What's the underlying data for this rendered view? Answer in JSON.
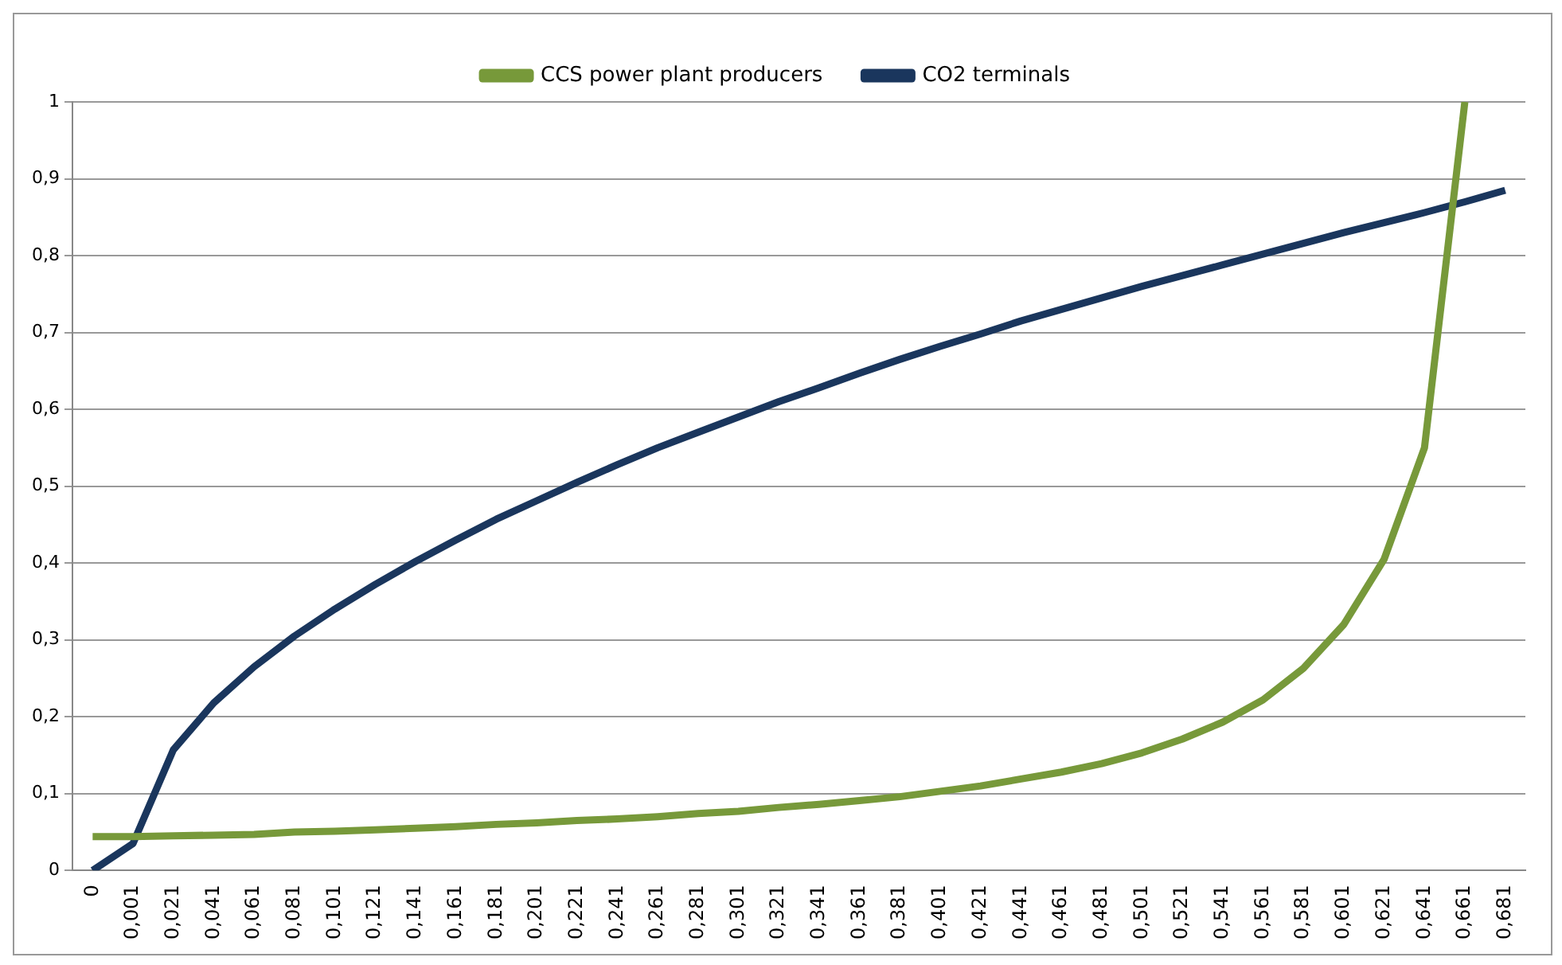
{
  "chart_data": {
    "type": "line",
    "categories": [
      "0",
      "0,001",
      "0,021",
      "0,041",
      "0,061",
      "0,081",
      "0,101",
      "0,121",
      "0,141",
      "0,161",
      "0,181",
      "0,201",
      "0,221",
      "0,241",
      "0,261",
      "0,281",
      "0,301",
      "0,321",
      "0,341",
      "0,361",
      "0,381",
      "0,401",
      "0,421",
      "0,441",
      "0,461",
      "0,481",
      "0,501",
      "0,521",
      "0,541",
      "0,561",
      "0,581",
      "0,601",
      "0,621",
      "0,641",
      "0,661",
      "0,681"
    ],
    "series": [
      {
        "name": "CCS power plant producers",
        "color": "#77993a",
        "values": [
          0.044,
          0.044,
          0.045,
          0.046,
          0.047,
          0.05,
          0.051,
          0.053,
          0.055,
          0.057,
          0.06,
          0.062,
          0.065,
          0.067,
          0.07,
          0.074,
          0.077,
          0.082,
          0.086,
          0.091,
          0.096,
          0.103,
          0.11,
          0.119,
          0.128,
          0.139,
          0.153,
          0.171,
          0.193,
          0.222,
          0.263,
          0.32,
          0.405,
          0.55,
          1,
          null
        ]
      },
      {
        "name": "CO2 terminals",
        "color": "#1a365d",
        "values": [
          0,
          0.035,
          0.157,
          0.218,
          0.265,
          0.305,
          0.34,
          0.372,
          0.402,
          0.43,
          0.457,
          0.481,
          0.505,
          0.528,
          0.55,
          0.57,
          0.59,
          0.61,
          0.628,
          0.647,
          0.665,
          0.682,
          0.698,
          0.715,
          0.73,
          0.745,
          0.76,
          0.774,
          0.788,
          0.802,
          0.816,
          0.83,
          0.843,
          0.856,
          0.87,
          0.885
        ]
      }
    ],
    "ylim": [
      0,
      1
    ],
    "yticks": [
      0,
      {
        "value": 0.1,
        "label": "0,1"
      },
      {
        "value": 0.2,
        "label": "0,2"
      },
      {
        "value": 0.3,
        "label": "0,3"
      },
      {
        "value": 0.4,
        "label": "0,4"
      },
      {
        "value": 0.5,
        "label": "0,5"
      },
      {
        "value": 0.6,
        "label": "0,6"
      },
      {
        "value": 0.7,
        "label": "0,7"
      },
      {
        "value": 0.8,
        "label": "0,8"
      },
      {
        "value": 0.9,
        "label": "0,9"
      },
      1
    ],
    "grid": "y",
    "legend": "top",
    "marker": "none",
    "line_style": "solid"
  }
}
